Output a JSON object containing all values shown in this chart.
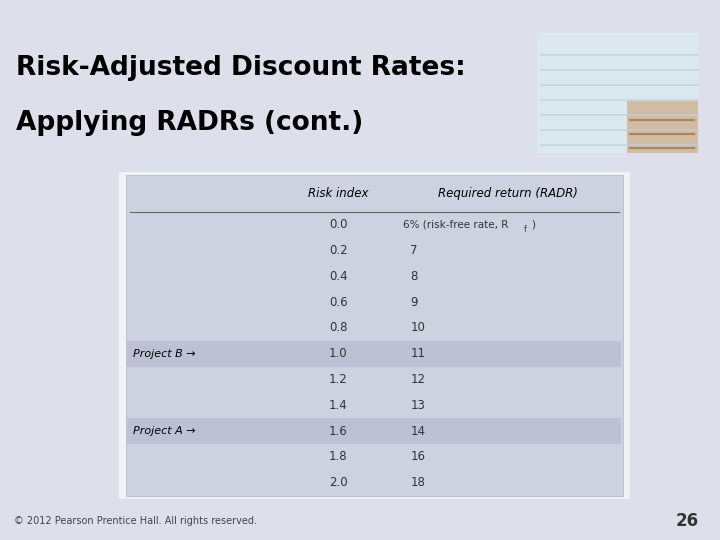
{
  "title_line1": "Risk-Adjusted Discount Rates:",
  "title_line2": "Applying RADRs (cont.)",
  "header_col2": "Risk index",
  "header_col3": "Required return (RADR)",
  "rows": [
    {
      "label": "",
      "risk_index": "0.0",
      "required_return": "6% (risk-free rate, R_f)"
    },
    {
      "label": "",
      "risk_index": "0.2",
      "required_return": "7"
    },
    {
      "label": "",
      "risk_index": "0.4",
      "required_return": "8"
    },
    {
      "label": "",
      "risk_index": "0.6",
      "required_return": "9"
    },
    {
      "label": "",
      "risk_index": "0.8",
      "required_return": "10"
    },
    {
      "label": "Project B →",
      "risk_index": "1.0",
      "required_return": "11"
    },
    {
      "label": "",
      "risk_index": "1.2",
      "required_return": "12"
    },
    {
      "label": "",
      "risk_index": "1.4",
      "required_return": "13"
    },
    {
      "label": "Project A →",
      "risk_index": "1.6",
      "required_return": "14"
    },
    {
      "label": "",
      "risk_index": "1.8",
      "required_return": "16"
    },
    {
      "label": "",
      "risk_index": "2.0",
      "required_return": "18"
    }
  ],
  "highlighted_rows": [
    5,
    8
  ],
  "footer_text": "© 2012 Pearson Prentice Hall. All rights reserved.",
  "footer_page": "26",
  "table_bg": "#cdd2e0",
  "highlight_color": "#bcc2d4",
  "title_bg": "#ffffff",
  "orange_color": "#e07820",
  "slide_bg": "#dde0ea",
  "white": "#ffffff"
}
